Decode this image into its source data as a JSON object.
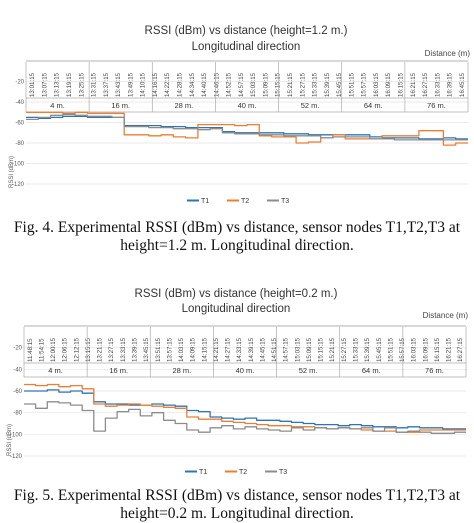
{
  "chart_data": [
    {
      "type": "line",
      "title": "RSSI (dBm) vs distance (height=1.2 m.)",
      "subtitle": "Longitudinal direction",
      "x_axis_label": "Distance (m)",
      "ylabel": "RSSI (dBm)",
      "yticks": [
        "-20",
        "-40",
        "-60",
        "-80",
        "-100",
        "-120"
      ],
      "ylim": [
        -125,
        0
      ],
      "time_labels": [
        "13:01:15",
        "13:07:15",
        "13:13:15",
        "13:19:15",
        "13:25:15",
        "13:31:15",
        "13:37:15",
        "13:43:15",
        "13:49:15",
        "14:10:15",
        "14:16:15",
        "14:22:15",
        "14:28:15",
        "14:34:15",
        "14:40:15",
        "14:46:15",
        "14:52:15",
        "14:57:15",
        "15:03:15",
        "15:09:15",
        "15:15:15",
        "15:21:15",
        "15:27:15",
        "15:33:15",
        "15:39:15",
        "15:45:15",
        "15:51:15",
        "15:57:15",
        "16:03:15",
        "16:09:15",
        "16:15:15",
        "16:21:15",
        "16:27:15",
        "16:33:15",
        "16:39:15",
        "16:45:15"
      ],
      "distance_labels": [
        "4 m.",
        "16 m.",
        "28 m.",
        "40 m.",
        "52 m.",
        "64 m.",
        "76 m."
      ],
      "series": [
        {
          "name": "T1",
          "color": "#2e75b6",
          "values": [
            -55,
            -56,
            -55,
            -54,
            -54,
            -55,
            -55,
            -55,
            -63,
            -63,
            -63,
            -64,
            -64,
            -65,
            -65,
            -65,
            -69,
            -70,
            -70,
            -70,
            -70,
            -71,
            -71,
            -72,
            -72,
            -72,
            -72,
            -72,
            -74,
            -75,
            -75,
            -75,
            -76,
            -76,
            -75,
            -76
          ]
        },
        {
          "name": "T2",
          "color": "#ed7d31",
          "values": [
            -50,
            -50,
            -50,
            -51,
            -50,
            -51,
            -51,
            -51,
            -72,
            -72,
            -73,
            -72,
            -74,
            -75,
            -62,
            -62,
            -62,
            -63,
            -62,
            -73,
            -74,
            -74,
            -80,
            -79,
            -75,
            -72,
            -76,
            -76,
            -76,
            -73,
            -73,
            -73,
            -68,
            -68,
            -82,
            -80
          ]
        },
        {
          "name": "T3",
          "color": "#8c8c8c",
          "values": [
            -57,
            -55,
            -53,
            -52,
            -53,
            -54,
            -54,
            -55,
            -64,
            -64,
            -65,
            -65,
            -66,
            -66,
            -67,
            -66,
            -70,
            -71,
            -71,
            -72,
            -72,
            -73,
            -73,
            -73,
            -75,
            -74,
            -74,
            -74,
            -76,
            -76,
            -77,
            -77,
            -77,
            -77,
            -77,
            -77
          ]
        }
      ]
    },
    {
      "type": "line",
      "title": "RSSI (dBm) vs distance (height=0.2 m.)",
      "subtitle": "Longitudinal direction",
      "x_axis_label": "Distance (m)",
      "ylabel": "RSSI (dBm)",
      "yticks": [
        "-20",
        "-40",
        "-60",
        "-80",
        "-100",
        "-120"
      ],
      "ylim": [
        -125,
        0
      ],
      "time_labels": [
        "11:48:15",
        "11:54:15",
        "12:00:15",
        "12:06:15",
        "12:12:15",
        "13:15:15",
        "13:21:15",
        "13:27:15",
        "13:33:15",
        "13:39:15",
        "13:45:15",
        "13:51:15",
        "13:57:15",
        "14:03:15",
        "14:09:15",
        "14:15:15",
        "14:21:15",
        "14:27:15",
        "14:33:15",
        "14:39:15",
        "14:45:15",
        "14:51:15",
        "14:57:15",
        "15:03:15",
        "15:09:15",
        "15:15:15",
        "15:21:15",
        "15:27:15",
        "15:33:15",
        "15:39:15",
        "15:45:15",
        "15:51:15",
        "15:57:15",
        "16:03:15",
        "16:09:15",
        "16:15:15",
        "16:21:15",
        "16:27:15"
      ],
      "distance_labels": [
        "4 m.",
        "16 m.",
        "28 m.",
        "40 m.",
        "52 m.",
        "64 m.",
        "76 m."
      ],
      "series": [
        {
          "name": "T1",
          "color": "#2e75b6",
          "values": [
            -60,
            -60,
            -59,
            -61,
            -60,
            -62,
            -70,
            -72,
            -72,
            -73,
            -73,
            -72,
            -73,
            -74,
            -78,
            -79,
            -84,
            -85,
            -86,
            -85,
            -87,
            -87,
            -88,
            -89,
            -90,
            -91,
            -91,
            -92,
            -91,
            -92,
            -93,
            -93,
            -94,
            -93,
            -94,
            -94,
            -95,
            -95
          ]
        },
        {
          "name": "T2",
          "color": "#ed7d31",
          "values": [
            -54,
            -55,
            -54,
            -56,
            -55,
            -58,
            -72,
            -74,
            -73,
            -72,
            -73,
            -74,
            -75,
            -76,
            -84,
            -86,
            -86,
            -88,
            -89,
            -90,
            -91,
            -92,
            -92,
            -93,
            -93,
            -94,
            -95,
            -94,
            -95,
            -96,
            -97,
            -97,
            -98,
            -98,
            -96,
            -96,
            -96,
            -96
          ]
        },
        {
          "name": "T3",
          "color": "#8c8c8c",
          "values": [
            -72,
            -76,
            -70,
            -71,
            -73,
            -78,
            -97,
            -85,
            -79,
            -77,
            -83,
            -80,
            -87,
            -90,
            -96,
            -98,
            -94,
            -92,
            -95,
            -93,
            -95,
            -96,
            -97,
            -94,
            -96,
            -94,
            -95,
            -94,
            -95,
            -94,
            -97,
            -94,
            -98,
            -97,
            -98,
            -99,
            -99,
            -98
          ]
        }
      ]
    }
  ],
  "captions": {
    "fig4": "Fig. 4.   Experimental RSSI (dBm) vs distance, sensor nodes T1,T2,T3 at height=1.2 m. Longitudinal direction.",
    "fig5": "Fig. 5.   Experimental  RSSI (dBm) vs distance, sensor nodes T1,T2,T3 at height=0.2 m. Longitudinal direction."
  }
}
